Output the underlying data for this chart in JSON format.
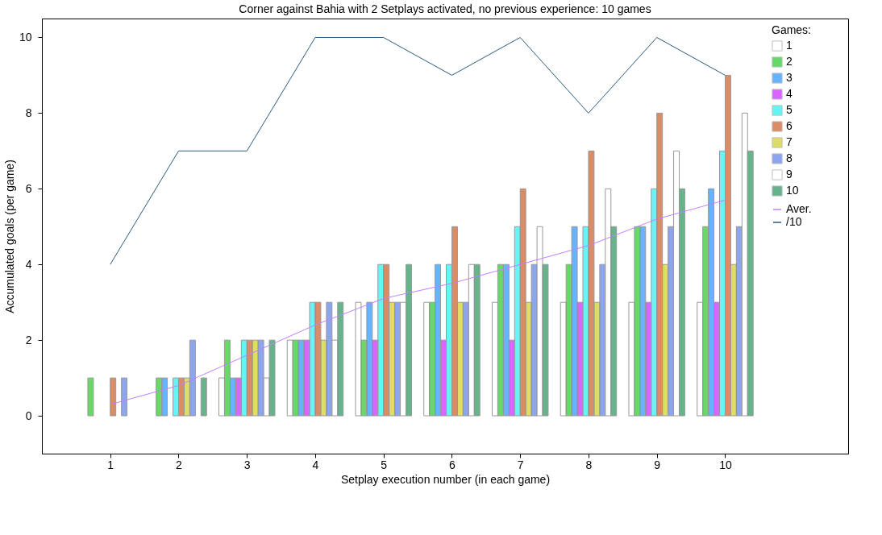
{
  "chart_data": {
    "type": "bar",
    "title": "Corner against Bahia with 2 Setplays activated, no previous experience: 10 games",
    "xlabel": "Setplay execution number (in each game)",
    "ylabel": "Accumulated goals  (per game)",
    "legend_title": "Games:",
    "categories": [
      "1",
      "2",
      "3",
      "4",
      "5",
      "6",
      "7",
      "8",
      "9",
      "10"
    ],
    "series": [
      {
        "name": "1",
        "color": "#ffffff",
        "values": [
          0,
          0,
          1,
          2,
          3,
          3,
          3,
          3,
          3,
          3
        ]
      },
      {
        "name": "2",
        "color": "#00c000",
        "values": [
          1,
          1,
          2,
          2,
          2,
          3,
          4,
          4,
          5,
          5
        ]
      },
      {
        "name": "3",
        "color": "#0080ff",
        "values": [
          0,
          1,
          1,
          2,
          3,
          4,
          4,
          5,
          5,
          6
        ]
      },
      {
        "name": "4",
        "color": "#c000ff",
        "values": [
          0,
          0,
          1,
          2,
          2,
          2,
          2,
          3,
          3,
          3
        ]
      },
      {
        "name": "5",
        "color": "#00eeee",
        "values": [
          0,
          1,
          2,
          3,
          4,
          4,
          5,
          5,
          6,
          7
        ]
      },
      {
        "name": "6",
        "color": "#c04000",
        "values": [
          1,
          1,
          2,
          3,
          4,
          5,
          6,
          7,
          8,
          9
        ]
      },
      {
        "name": "7",
        "color": "#c8c800",
        "values": [
          0,
          1,
          2,
          2,
          3,
          3,
          3,
          3,
          4,
          4
        ]
      },
      {
        "name": "8",
        "color": "#4169e1",
        "values": [
          1,
          2,
          2,
          3,
          3,
          3,
          4,
          4,
          5,
          5
        ]
      },
      {
        "name": "9",
        "color": "#ffffff",
        "values": [
          0,
          0,
          1,
          2,
          3,
          4,
          5,
          6,
          7,
          8
        ]
      },
      {
        "name": "10",
        "color": "#008040",
        "values": [
          0,
          1,
          2,
          3,
          4,
          4,
          4,
          5,
          6,
          7
        ]
      },
      {
        "name": "Aver.",
        "type": "line",
        "color": "#c080ff",
        "values": [
          0.3,
          0.8,
          1.6,
          2.4,
          3.1,
          3.5,
          4.0,
          4.5,
          5.2,
          5.7
        ]
      },
      {
        "name": "/10",
        "type": "line",
        "color": "#2a5a80",
        "values": [
          4,
          7,
          7,
          10,
          10,
          9,
          10,
          8,
          10,
          9
        ]
      }
    ],
    "ylim": [
      -1,
      10.5
    ],
    "yticks": [
      0,
      2,
      4,
      6,
      8,
      10
    ],
    "grid": false,
    "legend": "top right"
  }
}
